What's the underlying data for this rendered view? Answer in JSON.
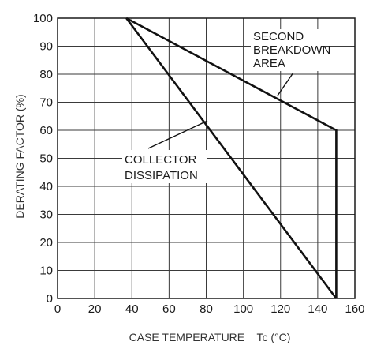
{
  "chart_data": {
    "type": "line",
    "xlabel": "CASE TEMPERATURE    Tc (°C)",
    "ylabel": "DERATING FACTOR (%)",
    "xlim": [
      0,
      160
    ],
    "ylim": [
      0,
      100
    ],
    "x_ticks": [
      "0",
      "20",
      "40",
      "60",
      "80",
      "100",
      "120",
      "140",
      "160"
    ],
    "y_ticks": [
      "0",
      "10",
      "20",
      "30",
      "40",
      "50",
      "60",
      "70",
      "80",
      "90",
      "100"
    ],
    "grid": true,
    "series": [
      {
        "name": "COLLECTOR DISSIPATION",
        "x": [
          37,
          150
        ],
        "y": [
          100,
          0
        ]
      },
      {
        "name": "SECOND BREAKDOWN AREA",
        "x": [
          37,
          150,
          150
        ],
        "y": [
          100,
          60,
          0
        ]
      }
    ],
    "annotations": [
      {
        "lines": [
          "SECOND",
          "BREAKDOWN",
          "AREA"
        ]
      },
      {
        "lines": [
          "COLLECTOR",
          "DISSIPATION"
        ]
      }
    ]
  }
}
